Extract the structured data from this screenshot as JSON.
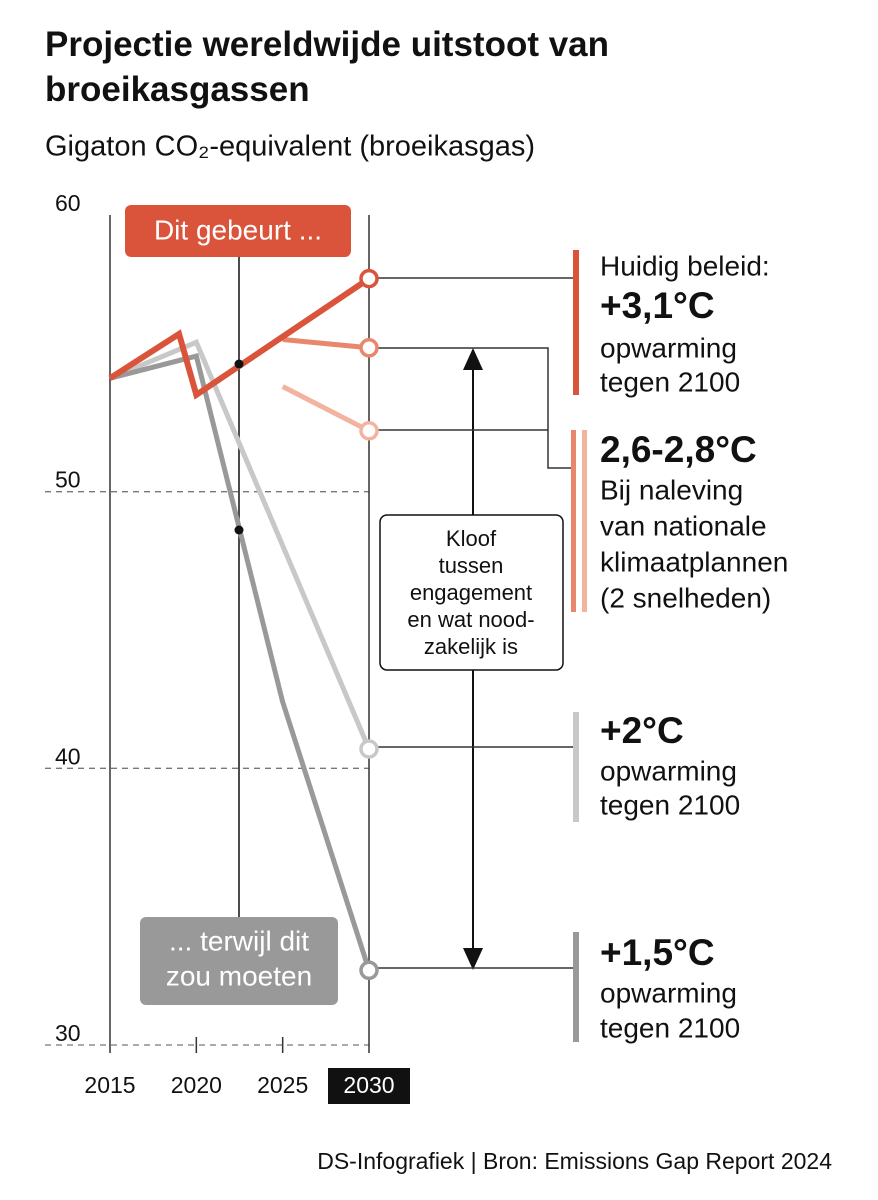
{
  "chart_data": {
    "type": "line",
    "title": "Projectie wereldwijde uitstoot van broeikasgassen",
    "subtitle": "Gigaton CO₂-equivalent (broeikasgas)",
    "xlim": [
      2015,
      2030
    ],
    "xticks": [
      2015,
      2020,
      2025,
      2030
    ],
    "ylim": [
      30,
      60
    ],
    "yticks": [
      30,
      40,
      50,
      60
    ],
    "grid": true,
    "series": [
      {
        "color": "#c8c8c8",
        "x": [
          2015,
          2020,
          2030
        ],
        "values": [
          54.1,
          55.4,
          40.7
        ]
      },
      {
        "color": "#999999",
        "x": [
          2015,
          2020,
          2025,
          2030
        ],
        "values": [
          54.1,
          54.9,
          42.4,
          32.7
        ]
      },
      {
        "color": "#e8876b",
        "x": [
          2025,
          2030
        ],
        "values": [
          55.5,
          55.2
        ]
      },
      {
        "color": "#f2b49f",
        "x": [
          2025,
          2030
        ],
        "values": [
          53.8,
          52.2
        ]
      },
      {
        "name": "Huidig beleid:",
        "color": "#d9543a",
        "x": [
          2015,
          2019,
          2020,
          2030
        ],
        "values": [
          54.1,
          55.7,
          53.5,
          57.7
        ]
      }
    ],
    "annotations": {
      "now": "Dit gebeurt ...",
      "should": [
        "... terwijl dit",
        "zou moeten"
      ],
      "gap": [
        "Kloof",
        "tussen",
        "engagement",
        "en wat nood-",
        "zakelijk is"
      ]
    },
    "right_labels": {
      "current": [
        "+3,1°C",
        "opwarming",
        "tegen 2100"
      ],
      "ndc": [
        "2,6-2,8°C",
        "Bij naleving",
        "van nationale",
        "klimaatplannen",
        "(2 snelheden)"
      ],
      "two": [
        "+2°C",
        "opwarming",
        "tegen 2100"
      ],
      "one_five": [
        "+1,5°C",
        "opwarming",
        "tegen 2100"
      ]
    },
    "source": "DS-Infografiek | Bron: Emissions Gap Report 2024"
  }
}
